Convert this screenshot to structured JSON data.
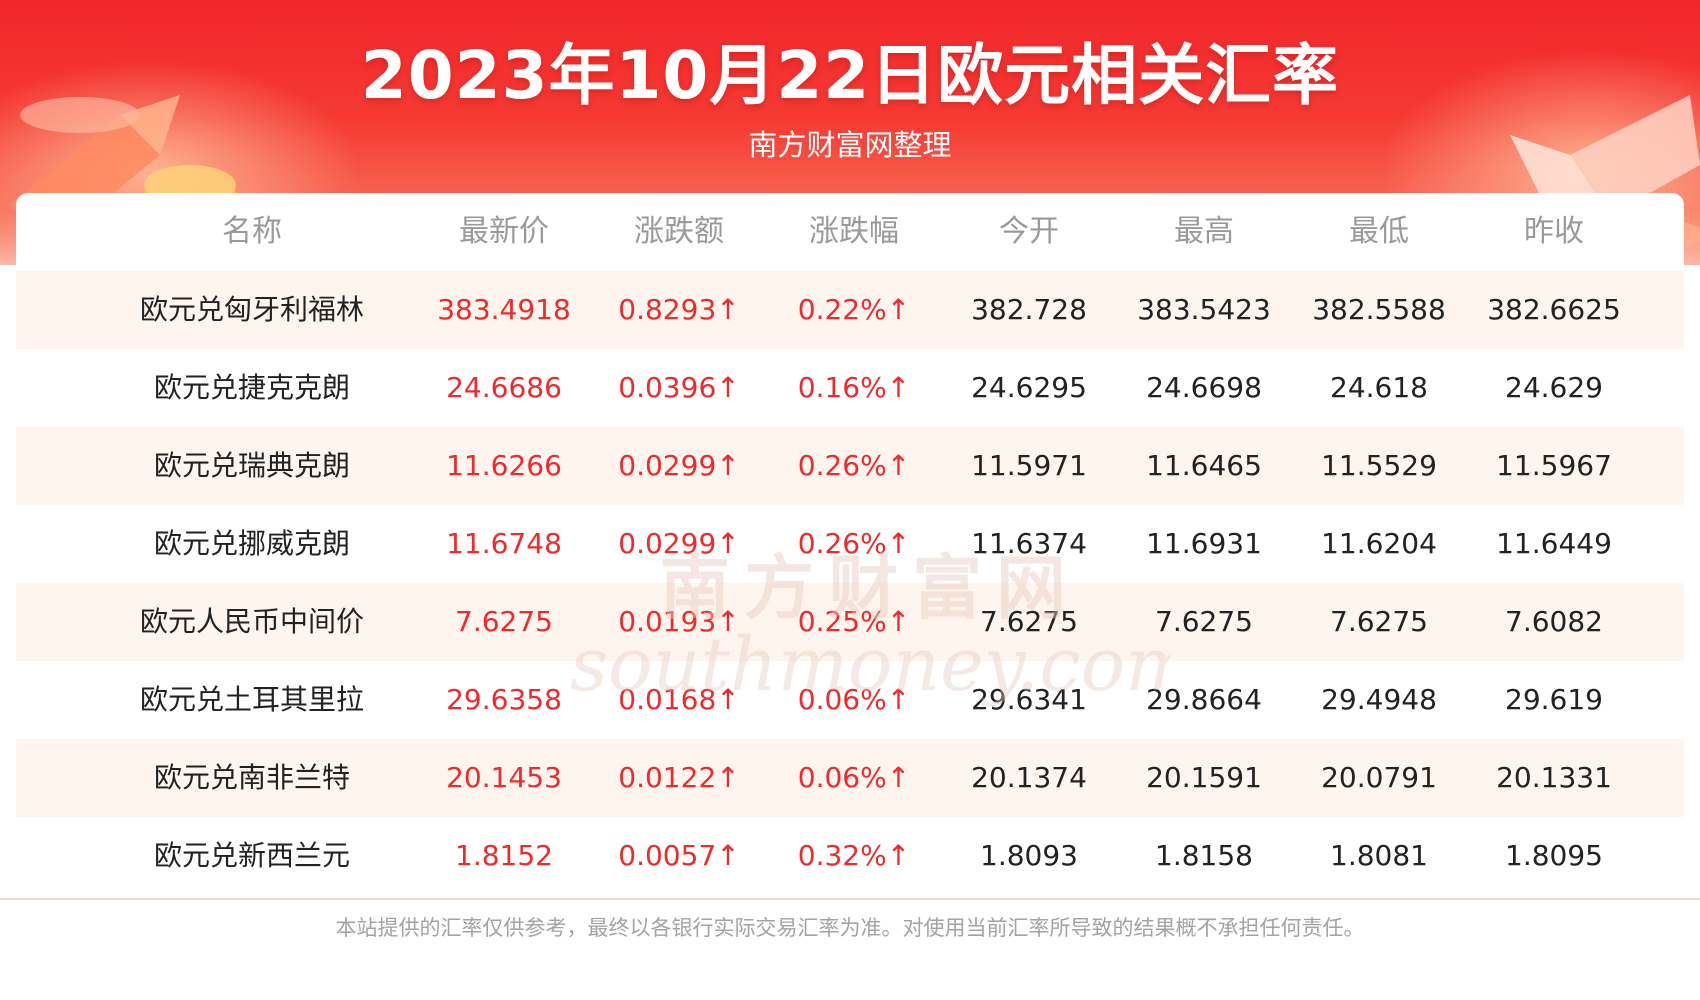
{
  "header": {
    "title": "2023年10月22日欧元相关汇率",
    "subtitle": "南方财富网整理"
  },
  "table": {
    "columns": [
      "名称",
      "最新价",
      "涨跌额",
      "涨跌幅",
      "今开",
      "最高",
      "最低",
      "昨收"
    ],
    "rows": [
      [
        "欧元兑匈牙利福林",
        "383.4918",
        "0.8293↑",
        "0.22%↑",
        "382.728",
        "383.5423",
        "382.5588",
        "382.6625"
      ],
      [
        "欧元兑捷克克朗",
        "24.6686",
        "0.0396↑",
        "0.16%↑",
        "24.6295",
        "24.6698",
        "24.618",
        "24.629"
      ],
      [
        "欧元兑瑞典克朗",
        "11.6266",
        "0.0299↑",
        "0.26%↑",
        "11.5971",
        "11.6465",
        "11.5529",
        "11.5967"
      ],
      [
        "欧元兑挪威克朗",
        "11.6748",
        "0.0299↑",
        "0.26%↑",
        "11.6374",
        "11.6931",
        "11.6204",
        "11.6449"
      ],
      [
        "欧元人民币中间价",
        "7.6275",
        "0.0193↑",
        "0.25%↑",
        "7.6275",
        "7.6275",
        "7.6275",
        "7.6082"
      ],
      [
        "欧元兑土耳其里拉",
        "29.6358",
        "0.0168↑",
        "0.06%↑",
        "29.6341",
        "29.8664",
        "29.4948",
        "29.619"
      ],
      [
        "欧元兑南非兰特",
        "20.1453",
        "0.0122↑",
        "0.06%↑",
        "20.1374",
        "20.1591",
        "20.0791",
        "20.1331"
      ],
      [
        "欧元兑新西兰元",
        "1.8152",
        "0.0057↑",
        "0.32%↑",
        "1.8093",
        "1.8158",
        "1.8081",
        "1.8095"
      ]
    ]
  },
  "watermark": {
    "cn": "南方财富网",
    "en": "southmoney.com"
  },
  "footer": {
    "disclaimer": "本站提供的汇率仅供参考，最终以各银行实际交易汇率为准。对使用当前汇率所导致的结果概不承担任何责任。"
  },
  "colors": {
    "banner_red": "#f2262a",
    "up_red": "#f02a2a",
    "header_gray": "#9a9a9a",
    "stripe": "#fff5ef"
  }
}
